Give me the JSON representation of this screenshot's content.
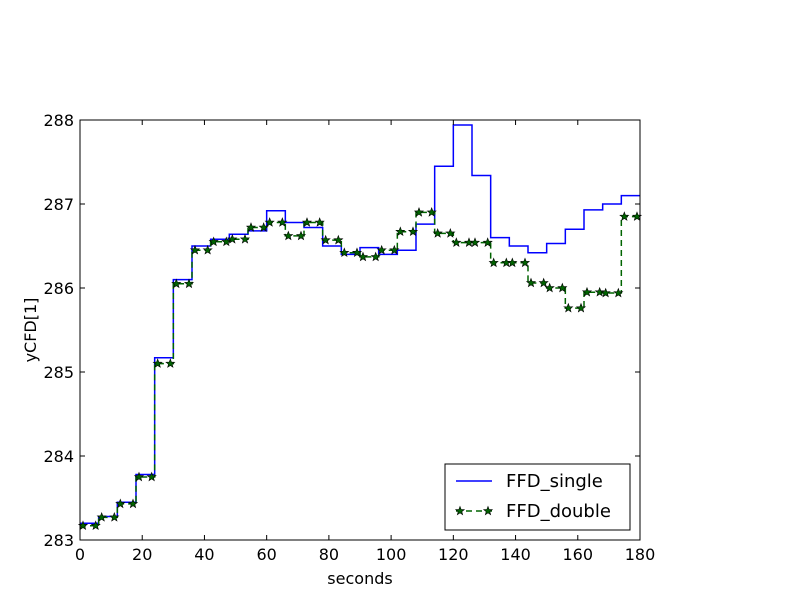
{
  "chart_data": {
    "type": "line",
    "title": "",
    "xlabel": "seconds",
    "ylabel": "yCFD[1]",
    "xlim": [
      0,
      180
    ],
    "ylim": [
      283,
      288
    ],
    "xticks": [
      "0",
      "20",
      "40",
      "60",
      "80",
      "100",
      "120",
      "140",
      "160",
      "180"
    ],
    "yticks": [
      "283",
      "284",
      "285",
      "286",
      "287",
      "288"
    ],
    "grid": false,
    "legend_position": "lower right",
    "series": [
      {
        "name": "FFD_single",
        "color": "#0000ff",
        "style": "solid steps",
        "marker": "none",
        "x": [
          0,
          6,
          12,
          18,
          24,
          30,
          36,
          42,
          48,
          54,
          60,
          66,
          72,
          78,
          84,
          90,
          96,
          102,
          108,
          114,
          120,
          126,
          132,
          138,
          144,
          150,
          156,
          162,
          168,
          174,
          180
        ],
        "y": [
          283.2,
          283.28,
          283.45,
          283.78,
          285.17,
          286.1,
          286.5,
          286.58,
          286.64,
          286.68,
          286.92,
          286.78,
          286.72,
          286.5,
          286.4,
          286.48,
          286.4,
          286.45,
          286.76,
          287.45,
          287.94,
          287.34,
          286.6,
          286.5,
          286.42,
          286.53,
          286.7,
          286.93,
          287.0,
          287.1,
          287.1
        ]
      },
      {
        "name": "FFD_double",
        "color": "#006400",
        "style": "dashed steps",
        "marker": "star",
        "x": [
          0,
          6,
          12,
          18,
          24,
          30,
          36,
          42,
          48,
          54,
          60,
          66,
          72,
          78,
          84,
          90,
          96,
          102,
          108,
          114,
          120,
          126,
          132,
          138,
          144,
          150,
          156,
          162,
          168,
          174,
          180
        ],
        "y": [
          283.17,
          283.27,
          283.43,
          283.75,
          285.1,
          286.05,
          286.45,
          286.55,
          286.58,
          286.72,
          286.78,
          286.62,
          286.78,
          286.57,
          286.42,
          286.37,
          286.45,
          286.67,
          286.9,
          286.65,
          286.54,
          286.54,
          286.3,
          286.3,
          286.06,
          286.0,
          285.76,
          285.95,
          285.94,
          286.85,
          286.85
        ]
      }
    ]
  }
}
